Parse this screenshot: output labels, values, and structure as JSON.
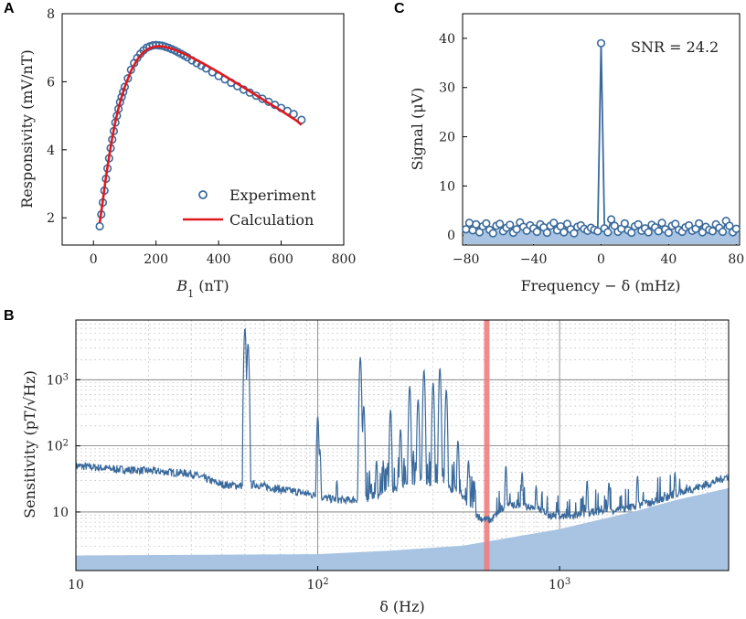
{
  "colors": {
    "marker": "#3a6a9c",
    "calc": "#e0191f",
    "fill": "#a9c4e2",
    "highlight": "#f08080"
  },
  "chart_data": [
    {
      "panel": "A",
      "type": "scatter",
      "xlabel_main": "B",
      "xlabel_sub": "1",
      "xlabel_unit": " (nT)",
      "ylabel": "Responsivity (mV/nT)",
      "xlim": [
        -100,
        800
      ],
      "ylim": [
        1.2,
        8
      ],
      "xticks": [
        0,
        200,
        400,
        600,
        800
      ],
      "yticks": [
        2,
        4,
        6,
        8
      ],
      "series": [
        {
          "name": "Experiment",
          "kind": "markers",
          "x": [
            20,
            25,
            30,
            35,
            40,
            45,
            50,
            55,
            60,
            65,
            70,
            75,
            80,
            85,
            90,
            95,
            100,
            110,
            120,
            130,
            140,
            150,
            160,
            170,
            180,
            190,
            200,
            210,
            220,
            230,
            240,
            250,
            260,
            270,
            280,
            290,
            300,
            315,
            330,
            345,
            360,
            380,
            400,
            420,
            440,
            460,
            480,
            500,
            520,
            540,
            560,
            580,
            600,
            620,
            640,
            665
          ],
          "y": [
            1.75,
            2.1,
            2.45,
            2.8,
            3.15,
            3.45,
            3.75,
            4.05,
            4.3,
            4.55,
            4.8,
            5.0,
            5.2,
            5.4,
            5.55,
            5.7,
            5.85,
            6.1,
            6.35,
            6.55,
            6.7,
            6.82,
            6.92,
            7.0,
            7.04,
            7.07,
            7.08,
            7.07,
            7.06,
            7.03,
            7.0,
            6.96,
            6.92,
            6.87,
            6.82,
            6.77,
            6.72,
            6.63,
            6.55,
            6.47,
            6.39,
            6.28,
            6.17,
            6.07,
            5.97,
            5.87,
            5.77,
            5.68,
            5.59,
            5.5,
            5.41,
            5.32,
            5.23,
            5.14,
            5.05,
            4.88
          ]
        },
        {
          "name": "Calculation",
          "kind": "line",
          "x": [
            20,
            30,
            40,
            50,
            60,
            70,
            80,
            90,
            100,
            120,
            140,
            160,
            180,
            200,
            220,
            240,
            260,
            280,
            300,
            350,
            400,
            450,
            500,
            550,
            600,
            650,
            665
          ],
          "y": [
            1.85,
            2.5,
            3.2,
            3.8,
            4.35,
            4.82,
            5.22,
            5.55,
            5.85,
            6.32,
            6.65,
            6.87,
            6.99,
            7.04,
            7.04,
            7.0,
            6.94,
            6.86,
            6.78,
            6.54,
            6.28,
            6.0,
            5.72,
            5.43,
            5.15,
            4.85,
            4.73
          ]
        }
      ],
      "legend": "lower-right"
    },
    {
      "panel": "C",
      "type": "line",
      "xlabel": "Frequency − δ (mHz)",
      "ylabel": "Signal (μV)",
      "xlim": [
        -82,
        82
      ],
      "ylim": [
        -2,
        45
      ],
      "xticks": [
        -80,
        -40,
        0,
        40,
        80
      ],
      "yticks": [
        0,
        10,
        20,
        30,
        40
      ],
      "annotation": "SNR = 24.2",
      "series": [
        {
          "name": "Signal",
          "kind": "markers+line",
          "x": [
            -80,
            -78,
            -76,
            -74,
            -72,
            -70,
            -68,
            -66,
            -64,
            -62,
            -60,
            -58,
            -56,
            -54,
            -52,
            -50,
            -48,
            -46,
            -44,
            -42,
            -40,
            -38,
            -36,
            -34,
            -32,
            -30,
            -28,
            -26,
            -24,
            -22,
            -20,
            -18,
            -16,
            -14,
            -12,
            -10,
            -8,
            -6,
            -4,
            -2,
            0,
            2,
            4,
            6,
            8,
            10,
            12,
            14,
            16,
            18,
            20,
            22,
            24,
            26,
            28,
            30,
            32,
            34,
            36,
            38,
            40,
            42,
            44,
            46,
            48,
            50,
            52,
            54,
            56,
            58,
            60,
            62,
            64,
            66,
            68,
            70,
            72,
            74,
            76,
            78,
            80
          ],
          "y": [
            1.2,
            2.5,
            1.0,
            2.2,
            0.6,
            1.8,
            2.4,
            1.1,
            0.4,
            1.9,
            2.3,
            0.8,
            1.5,
            2.1,
            0.5,
            1.2,
            2.6,
            1.7,
            0.9,
            2.0,
            1.4,
            0.7,
            2.2,
            1.6,
            0.5,
            1.9,
            2.5,
            1.0,
            1.8,
            0.6,
            2.3,
            1.2,
            0.4,
            1.7,
            2.0,
            1.3,
            0.9,
            1.5,
            1.1,
            0.8,
            39.0,
            1.4,
            0.6,
            3.2,
            1.9,
            0.7,
            1.3,
            2.4,
            1.0,
            0.5,
            1.8,
            2.2,
            0.9,
            1.4,
            0.6,
            2.1,
            1.6,
            0.8,
            2.5,
            1.2,
            0.5,
            1.9,
            2.3,
            1.1,
            0.7,
            1.6,
            2.0,
            0.9,
            1.3,
            2.4,
            0.6,
            1.7,
            1.1,
            0.8,
            2.2,
            1.5,
            0.7,
            2.9,
            1.9,
            0.6,
            1.3
          ]
        }
      ],
      "noise_floor": 0.9
    },
    {
      "panel": "B",
      "type": "line",
      "xscale": "log",
      "yscale": "log",
      "xlabel": "δ (Hz)",
      "ylabel": "Sensitivity (pT/√Hz)",
      "xlim": [
        10,
        5000
      ],
      "ylim": [
        1.3,
        8000
      ],
      "xticks": [
        {
          "main": "10",
          "exp": ""
        },
        {
          "main": "10",
          "exp": "2"
        },
        {
          "main": "10",
          "exp": "3"
        }
      ],
      "yticks": [
        {
          "main": "10",
          "exp": ""
        },
        {
          "main": "10",
          "exp": "2"
        },
        {
          "main": "10",
          "exp": "3"
        }
      ],
      "grid": true,
      "highlight_x": 500,
      "spectrum_anchors": [
        [
          10,
          50
        ],
        [
          15,
          44
        ],
        [
          20,
          42
        ],
        [
          30,
          38
        ],
        [
          40,
          26
        ],
        [
          48,
          25
        ],
        [
          55,
          26
        ],
        [
          70,
          22
        ],
        [
          90,
          19
        ],
        [
          110,
          16
        ],
        [
          130,
          15
        ],
        [
          160,
          16
        ],
        [
          200,
          22
        ],
        [
          260,
          30
        ],
        [
          320,
          26
        ],
        [
          380,
          20
        ],
        [
          430,
          12
        ],
        [
          470,
          8
        ],
        [
          520,
          7.5
        ],
        [
          600,
          13
        ],
        [
          700,
          12
        ],
        [
          800,
          12
        ],
        [
          900,
          9
        ],
        [
          1100,
          8.5
        ],
        [
          1400,
          10
        ],
        [
          1800,
          11
        ],
        [
          2400,
          14
        ],
        [
          3200,
          20
        ],
        [
          4200,
          27
        ],
        [
          5000,
          35
        ]
      ],
      "spectrum_peaks": [
        [
          50,
          6000
        ],
        [
          51.5,
          3500
        ],
        [
          60,
          25
        ],
        [
          100,
          280
        ],
        [
          102,
          90
        ],
        [
          120,
          30
        ],
        [
          150,
          2200
        ],
        [
          155,
          400
        ],
        [
          175,
          60
        ],
        [
          200,
          350
        ],
        [
          220,
          180
        ],
        [
          240,
          800
        ],
        [
          260,
          500
        ],
        [
          275,
          1400
        ],
        [
          300,
          900
        ],
        [
          320,
          1500
        ],
        [
          340,
          700
        ],
        [
          380,
          120
        ],
        [
          420,
          60
        ],
        [
          600,
          50
        ],
        [
          700,
          40
        ],
        [
          800,
          25
        ],
        [
          1300,
          30
        ],
        [
          1600,
          28
        ],
        [
          2100,
          35
        ],
        [
          3000,
          40
        ],
        [
          4000,
          30
        ]
      ],
      "noise_floor_anchors": [
        [
          10,
          2.2
        ],
        [
          100,
          2.3
        ],
        [
          200,
          2.6
        ],
        [
          400,
          3.1
        ],
        [
          1000,
          5.5
        ],
        [
          2000,
          10
        ],
        [
          3000,
          15
        ],
        [
          5000,
          23
        ]
      ]
    }
  ]
}
